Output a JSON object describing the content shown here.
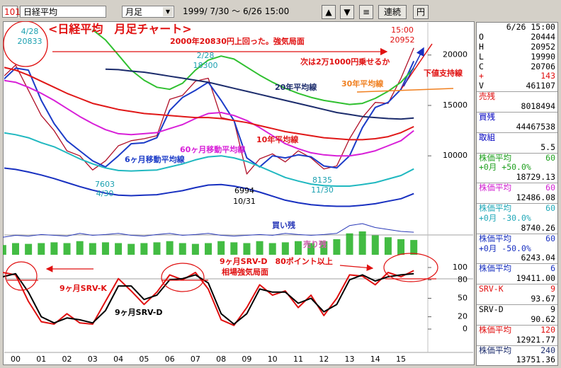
{
  "toolbar": {
    "code": "101",
    "name": "日経平均",
    "period": "月足",
    "range": "1999/ 7/30 ～ 6/26 15:00",
    "buttons": [
      "▲",
      "▼",
      "≡",
      "連続",
      "円"
    ]
  },
  "chart_data": [
    {
      "type": "line",
      "title": "<日経平均　月足チャート>",
      "ylim": [
        4400,
        23000
      ],
      "yticks": [
        10000,
        15000,
        20000
      ],
      "series": [
        {
          "color": "#b01028",
          "values": [
            17800,
            19000,
            16500,
            14000,
            12500,
            10500,
            10000,
            8600,
            9500,
            11000,
            11500,
            11700,
            12000,
            15600,
            16000,
            17400,
            17700,
            13800,
            13500,
            8200,
            9700,
            10200,
            9400,
            10500,
            9800,
            8700,
            9000,
            11700,
            13800,
            15300,
            15200,
            17700,
            20700
          ]
        },
        {
          "name": "6ヶ月移動平均線",
          "color": "#1c3cc8",
          "values": [
            17500,
            18700,
            18500,
            15500,
            13200,
            11500,
            10500,
            9500,
            8900,
            10000,
            11200,
            11300,
            11800,
            14500,
            15800,
            16500,
            17300,
            15500,
            13500,
            9800,
            8900,
            10000,
            9800,
            10100,
            9900,
            9000,
            8800,
            10000,
            12800,
            14800,
            15300,
            16600,
            19400
          ]
        },
        {
          "name": "60ヶ月移動平均線",
          "color": "#d820d8",
          "values": [
            17500,
            17300,
            16800,
            16200,
            15500,
            14700,
            13900,
            13200,
            12600,
            12200,
            12100,
            12200,
            12300,
            12700,
            13100,
            13700,
            14200,
            14300,
            14000,
            13500,
            12800,
            12000,
            11200,
            10700,
            10300,
            10100,
            10000,
            10000,
            10200,
            10500,
            11000,
            11500,
            12500
          ]
        },
        {
          "color": "#30c030",
          "values": [
            null,
            null,
            null,
            null,
            null,
            null,
            null,
            22500,
            21500,
            20000,
            18500,
            17500,
            16800,
            16600,
            17200,
            18500,
            19500,
            19900,
            19600,
            18800,
            18000,
            17300,
            16700,
            16200,
            15800,
            15500,
            15300,
            15100,
            15200,
            15700,
            16400,
            17300,
            18700
          ]
        },
        {
          "name": "10年平均線",
          "color": "#e01818",
          "values": [
            18800,
            18500,
            18000,
            17400,
            16800,
            16200,
            15700,
            15200,
            14900,
            14600,
            14400,
            14200,
            14100,
            14000,
            13900,
            13800,
            13800,
            13700,
            13500,
            13300,
            13000,
            12700,
            12400,
            12200,
            12000,
            11800,
            11700,
            11600,
            11600,
            11700,
            11900,
            12300,
            12900
          ]
        },
        {
          "name": "20年平均線",
          "color": "#1c2c6c",
          "values": [
            null,
            null,
            null,
            null,
            null,
            null,
            null,
            null,
            18600,
            18550,
            18400,
            18300,
            18100,
            17900,
            17700,
            17500,
            17300,
            17000,
            16700,
            16400,
            16100,
            15800,
            15500,
            15200,
            14900,
            14600,
            14300,
            14100,
            13900,
            13800,
            13700,
            13650,
            13750
          ]
        },
        {
          "color": "#20b8c0",
          "values": [
            12300,
            12100,
            11800,
            11300,
            10900,
            10300,
            9700,
            9200,
            8800,
            8550,
            8500,
            8550,
            8600,
            8900,
            9200,
            9600,
            9900,
            10000,
            9800,
            9450,
            8950,
            8400,
            7850,
            7500,
            7200,
            7050,
            7000,
            7000,
            7150,
            7350,
            7700,
            8050,
            8700
          ]
        },
        {
          "color": "#1830c0",
          "values": [
            8800,
            8650,
            8400,
            8100,
            7750,
            7350,
            6950,
            6600,
            6300,
            6100,
            6050,
            6100,
            6150,
            6350,
            6550,
            6850,
            7100,
            7150,
            7000,
            6750,
            6400,
            6000,
            5600,
            5350,
            5150,
            5050,
            5000,
            5000,
            5100,
            5250,
            5500,
            5750,
            6250
          ]
        }
      ],
      "annotations": [
        {
          "text": "2000年20830円上回った。強気局面",
          "color": "#e01010"
        },
        {
          "text": "次は2万1000円乗せるか",
          "color": "#e01010"
        },
        {
          "text": "下値支持線",
          "color": "#e01010"
        },
        {
          "text": "30年平均線",
          "color": "#f08020"
        },
        {
          "text": "4/28",
          "color": "#1aa0b0"
        },
        {
          "text": "20833",
          "color": "#1aa0b0"
        },
        {
          "text": "2/28",
          "color": "#1aa0b0"
        },
        {
          "text": "18300",
          "color": "#1aa0b0"
        },
        {
          "text": "7603",
          "color": "#1aa0b0"
        },
        {
          "text": "4/30",
          "color": "#1aa0b0"
        },
        {
          "text": "6994",
          "color": "#000000"
        },
        {
          "text": "10/31",
          "color": "#000000"
        },
        {
          "text": "8135",
          "color": "#1aa0b0"
        },
        {
          "text": "11/30",
          "color": "#1aa0b0"
        },
        {
          "text": "15:00",
          "color": "#e01010"
        },
        {
          "text": "20952",
          "color": "#e01010"
        }
      ]
    },
    {
      "type": "bar",
      "ylim": [
        0,
        100
      ],
      "series": [
        {
          "name": "買い残",
          "type": "line",
          "color": "#2a3ab8",
          "values": [
            45,
            50,
            48,
            52,
            50,
            48,
            55,
            50,
            52,
            55,
            50,
            48,
            52,
            55,
            50,
            52,
            55,
            50,
            48,
            50,
            52,
            50,
            55,
            52,
            50,
            52,
            55,
            75,
            80,
            70,
            65,
            60,
            58
          ]
        },
        {
          "name": "売り残",
          "type": "bar",
          "color": "#22b022",
          "values": [
            25,
            30,
            28,
            30,
            32,
            30,
            35,
            30,
            32,
            30,
            28,
            30,
            32,
            35,
            30,
            28,
            30,
            35,
            32,
            30,
            35,
            30,
            32,
            35,
            30,
            35,
            40,
            55,
            60,
            50,
            45,
            40,
            38
          ]
        }
      ]
    },
    {
      "type": "line",
      "categories": [
        null,
        "00",
        null,
        "01",
        null,
        "02",
        null,
        "03",
        null,
        "04",
        null,
        "05",
        null,
        "06",
        null,
        "07",
        null,
        "08",
        null,
        "09",
        null,
        "10",
        null,
        "11",
        null,
        "12",
        null,
        "13",
        null,
        "14",
        null,
        "15",
        null
      ],
      "ylim": [
        0,
        100
      ],
      "yticks": [
        0,
        20,
        50,
        80,
        100
      ],
      "series": [
        {
          "name": "9ヶ月SRV-K",
          "color": "#e01010",
          "values": [
            92,
            88,
            45,
            12,
            8,
            25,
            10,
            8,
            45,
            82,
            62,
            40,
            60,
            88,
            80,
            92,
            65,
            15,
            6,
            35,
            72,
            55,
            62,
            35,
            55,
            22,
            50,
            88,
            86,
            72,
            92,
            85,
            95
          ]
        },
        {
          "name": "9ヶ月SRV-D",
          "color": "#000000",
          "values": [
            85,
            90,
            60,
            20,
            10,
            18,
            15,
            10,
            30,
            70,
            70,
            48,
            55,
            80,
            82,
            88,
            75,
            25,
            8,
            25,
            65,
            60,
            60,
            42,
            50,
            28,
            40,
            80,
            88,
            78,
            85,
            88,
            90
          ]
        }
      ],
      "annotations": [
        {
          "text": "9ヶ月SRV-D　80ポイント以上",
          "color": "#e01010"
        },
        {
          "text": "相場強気局面",
          "color": "#e01010"
        }
      ]
    }
  ],
  "side_panel": {
    "date": "6/26 15:00",
    "ohlc": [
      {
        "label": "O",
        "value": "20444"
      },
      {
        "label": "H",
        "value": "20952"
      },
      {
        "label": "L",
        "value": "19990"
      },
      {
        "label": "C",
        "value": "20706"
      },
      {
        "label": "+",
        "value": "143",
        "color": "#e01010"
      },
      {
        "label": "V",
        "value": "461107"
      }
    ],
    "items": [
      {
        "label": "売残",
        "value": "8018494",
        "color": "#e01010"
      },
      {
        "label": "買残",
        "value": "44467538",
        "color": "#0000c0"
      },
      {
        "label": "取組",
        "value": "5.5",
        "color": "#0000c0"
      },
      {
        "label": "株価平均",
        "param": "60",
        "sub": "+0月 +50.0%",
        "value": "18729.13",
        "color": "#20a020"
      },
      {
        "label": "株価平均",
        "param": "60",
        "value": "12486.08",
        "color": "#d020d0"
      },
      {
        "label": "株価平均",
        "param": "60",
        "sub": "+0月 -30.0%",
        "value": "8740.26",
        "color": "#20a8b8"
      },
      {
        "label": "株価平均",
        "param": "60",
        "sub": "+0月 -50.0%",
        "value": "6243.04",
        "color": "#1830c0"
      },
      {
        "label": "株価平均",
        "param": "6",
        "value": "19411.00",
        "color": "#1830c0"
      },
      {
        "label": "SRV-K",
        "param": "9",
        "value": "93.67",
        "color": "#e01010"
      },
      {
        "label": "SRV-D",
        "param": "9",
        "value": "90.62",
        "color": "#000000"
      },
      {
        "label": "株価平均",
        "param": "120",
        "value": "12921.77",
        "color": "#e01010"
      },
      {
        "label": "株価平均",
        "param": "240",
        "value": "13751.36",
        "color": "#1c2c6c"
      }
    ]
  }
}
